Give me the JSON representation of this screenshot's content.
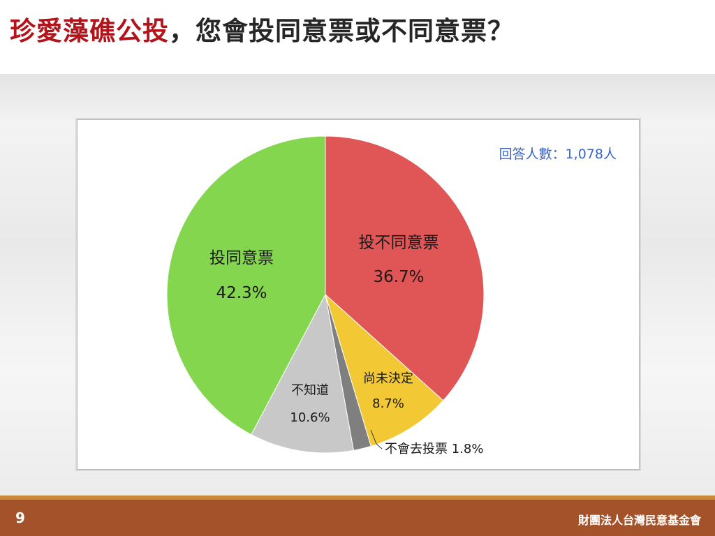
{
  "header": {
    "title_highlight": "珍愛藻礁公投",
    "title_rest": "，您會投同意票或不同意票？"
  },
  "chart": {
    "respondent_count": "回答人數：1,078人"
  },
  "chart_data": {
    "type": "pie",
    "title": "",
    "start_angle_deg": 0,
    "direction": "clockwise",
    "slices": [
      {
        "label": "投不同意票",
        "value": 36.7,
        "value_label": "36.7%",
        "color": "#e05555"
      },
      {
        "label": "尚未決定",
        "value": 8.7,
        "value_label": "8.7%",
        "color": "#f2c935"
      },
      {
        "label": "不會去投票",
        "value": 1.8,
        "value_label": "1.8%",
        "color": "#7f7f7f"
      },
      {
        "label": "不知道",
        "value": 10.6,
        "value_label": "10.6%",
        "color": "#c8c8c8"
      },
      {
        "label": "投同意票",
        "value": 42.3,
        "value_label": "42.3%",
        "color": "#84d64e"
      }
    ]
  },
  "footer": {
    "page_number": "9",
    "organization": "財團法人台灣民意基金會"
  }
}
